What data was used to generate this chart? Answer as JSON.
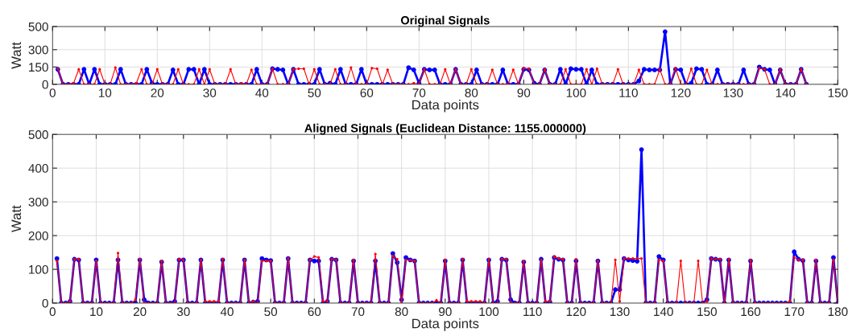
{
  "chart_data": [
    {
      "type": "line",
      "title": "Original Signals",
      "xlabel": "Data points",
      "ylabel": "Watt",
      "xlim": [
        0,
        150
      ],
      "xticks": [
        0,
        10,
        20,
        30,
        40,
        50,
        60,
        70,
        80,
        90,
        100,
        110,
        120,
        130,
        140,
        150
      ],
      "ylim": [
        0,
        500
      ],
      "yticks": [
        0,
        150,
        300,
        500
      ],
      "grid": true,
      "marker": "circle",
      "line_style": "solid",
      "x": [
        1,
        2,
        3,
        4,
        5,
        6,
        7,
        8,
        9,
        10,
        11,
        12,
        13,
        14,
        15,
        16,
        17,
        18,
        19,
        20,
        21,
        22,
        23,
        24,
        25,
        26,
        27,
        28,
        29,
        30,
        31,
        32,
        33,
        34,
        35,
        36,
        37,
        38,
        39,
        40,
        41,
        42,
        43,
        44,
        45,
        46,
        47,
        48,
        49,
        50,
        51,
        52,
        53,
        54,
        55,
        56,
        57,
        58,
        59,
        60,
        61,
        62,
        63,
        64,
        65,
        66,
        67,
        68,
        69,
        70,
        71,
        72,
        73,
        74,
        75,
        76,
        77,
        78,
        79,
        80,
        81,
        82,
        83,
        84,
        85,
        86,
        87,
        88,
        89,
        90,
        91,
        92,
        93,
        94,
        95,
        96,
        97,
        98,
        99,
        100,
        101,
        102,
        103,
        104,
        105,
        106,
        107,
        108,
        109,
        110,
        111,
        112,
        113,
        114,
        115,
        116,
        117,
        118,
        119,
        120,
        121,
        122,
        123,
        124,
        125,
        126,
        127,
        128,
        129,
        130,
        131,
        132,
        133,
        134,
        135,
        136,
        137,
        138,
        139,
        140,
        141,
        142,
        143,
        144
      ],
      "series": [
        {
          "color": "#0000ff",
          "values": [
            130,
            0,
            0,
            0,
            0,
            130,
            0,
            130,
            0,
            0,
            0,
            0,
            130,
            0,
            0,
            0,
            0,
            130,
            10,
            0,
            0,
            0,
            125,
            0,
            0,
            130,
            130,
            0,
            130,
            0,
            0,
            0,
            0,
            0,
            0,
            0,
            0,
            0,
            130,
            0,
            0,
            135,
            130,
            125,
            0,
            130,
            0,
            0,
            0,
            0,
            130,
            0,
            10,
            0,
            130,
            0,
            0,
            0,
            130,
            0,
            0,
            0,
            0,
            0,
            0,
            0,
            0,
            145,
            125,
            10,
            130,
            125,
            125,
            0,
            0,
            0,
            130,
            0,
            0,
            0,
            125,
            0,
            0,
            0,
            0,
            125,
            0,
            0,
            0,
            130,
            125,
            10,
            0,
            125,
            0,
            0,
            130,
            0,
            135,
            130,
            130,
            0,
            125,
            0,
            0,
            0,
            0,
            0,
            0,
            0,
            0,
            30,
            130,
            125,
            125,
            125,
            455,
            0,
            130,
            125,
            0,
            10,
            135,
            130,
            0,
            0,
            125,
            0,
            0,
            0,
            0,
            125,
            0,
            0,
            150,
            130,
            125,
            0,
            125,
            0,
            0,
            0,
            130,
            0
          ]
        },
        {
          "color": "#ff0000",
          "values": [
            135,
            0,
            0,
            8,
            130,
            0,
            0,
            0,
            130,
            0,
            0,
            145,
            0,
            0,
            0,
            10,
            130,
            0,
            0,
            130,
            0,
            0,
            0,
            130,
            0,
            0,
            0,
            130,
            0,
            130,
            0,
            0,
            0,
            130,
            0,
            8,
            0,
            125,
            0,
            0,
            0,
            135,
            0,
            0,
            0,
            130,
            135,
            135,
            0,
            130,
            0,
            0,
            0,
            130,
            0,
            0,
            145,
            0,
            0,
            0,
            140,
            135,
            0,
            125,
            0,
            0,
            0,
            0,
            10,
            0,
            130,
            0,
            0,
            0,
            130,
            0,
            130,
            0,
            0,
            130,
            0,
            0,
            0,
            125,
            0,
            0,
            0,
            125,
            0,
            140,
            135,
            0,
            0,
            130,
            0,
            0,
            0,
            130,
            0,
            0,
            0,
            130,
            0,
            135,
            0,
            0,
            0,
            130,
            0,
            0,
            0,
            125,
            0,
            0,
            0,
            130,
            0,
            0,
            140,
            0,
            0,
            135,
            0,
            0,
            125,
            0,
            0,
            0,
            0,
            0,
            0,
            0,
            0,
            0,
            140,
            130,
            0,
            0,
            130,
            0,
            0,
            0,
            130,
            0
          ]
        }
      ]
    },
    {
      "type": "line",
      "title": "Aligned Signals (Euclidean Distance: 1155.000000)",
      "xlabel": "Data points",
      "ylabel": "Watt",
      "xlim": [
        0,
        180
      ],
      "xticks": [
        0,
        10,
        20,
        30,
        40,
        50,
        60,
        70,
        80,
        90,
        100,
        110,
        120,
        130,
        140,
        150,
        160,
        170,
        180
      ],
      "ylim": [
        0,
        500
      ],
      "yticks": [
        0,
        100,
        200,
        300,
        400,
        500
      ],
      "grid": true,
      "marker": "circle",
      "line_style": "solid",
      "x": [
        1,
        2,
        3,
        4,
        5,
        6,
        7,
        8,
        9,
        10,
        11,
        12,
        13,
        14,
        15,
        16,
        17,
        18,
        19,
        20,
        21,
        22,
        23,
        24,
        25,
        26,
        27,
        28,
        29,
        30,
        31,
        32,
        33,
        34,
        35,
        36,
        37,
        38,
        39,
        40,
        41,
        42,
        43,
        44,
        45,
        46,
        47,
        48,
        49,
        50,
        51,
        52,
        53,
        54,
        55,
        56,
        57,
        58,
        59,
        60,
        61,
        62,
        63,
        64,
        65,
        66,
        67,
        68,
        69,
        70,
        71,
        72,
        73,
        74,
        75,
        76,
        77,
        78,
        79,
        80,
        81,
        82,
        83,
        84,
        85,
        86,
        87,
        88,
        89,
        90,
        91,
        92,
        93,
        94,
        95,
        96,
        97,
        98,
        99,
        100,
        101,
        102,
        103,
        104,
        105,
        106,
        107,
        108,
        109,
        110,
        111,
        112,
        113,
        114,
        115,
        116,
        117,
        118,
        119,
        120,
        121,
        122,
        123,
        124,
        125,
        126,
        127,
        128,
        129,
        130,
        131,
        132,
        133,
        134,
        135,
        136,
        137,
        138,
        139,
        140,
        141,
        142,
        143,
        144,
        145,
        146,
        147,
        148,
        149,
        150,
        151,
        152,
        153,
        154,
        155,
        156,
        157,
        158,
        159,
        160,
        161,
        162,
        163,
        164,
        165,
        166,
        167,
        168,
        169,
        170,
        171,
        172,
        173,
        174,
        175,
        176,
        177,
        178,
        179,
        180
      ],
      "series": [
        {
          "color": "#0000ff",
          "values": [
            132,
            0,
            0,
            5,
            130,
            128,
            0,
            0,
            0,
            128,
            0,
            0,
            0,
            0,
            128,
            0,
            0,
            0,
            0,
            128,
            10,
            0,
            0,
            0,
            122,
            0,
            0,
            5,
            128,
            128,
            0,
            0,
            0,
            128,
            0,
            0,
            0,
            0,
            128,
            0,
            0,
            0,
            0,
            128,
            0,
            3,
            5,
            132,
            128,
            126,
            0,
            0,
            0,
            132,
            0,
            0,
            0,
            0,
            128,
            125,
            125,
            0,
            5,
            130,
            128,
            0,
            0,
            0,
            125,
            0,
            0,
            0,
            0,
            125,
            0,
            0,
            0,
            147,
            120,
            10,
            135,
            128,
            125,
            0,
            0,
            0,
            0,
            0,
            0,
            125,
            0,
            0,
            0,
            128,
            0,
            0,
            0,
            0,
            0,
            128,
            0,
            5,
            130,
            128,
            10,
            0,
            0,
            122,
            0,
            0,
            0,
            130,
            0,
            3,
            135,
            130,
            128,
            0,
            0,
            125,
            0,
            0,
            0,
            0,
            125,
            0,
            0,
            0,
            40,
            40,
            132,
            128,
            126,
            124,
            455,
            0,
            0,
            0,
            138,
            128,
            0,
            0,
            0,
            0,
            0,
            0,
            0,
            0,
            0,
            10,
            132,
            130,
            128,
            0,
            128,
            0,
            0,
            0,
            0,
            125,
            0,
            0,
            0,
            0,
            0,
            0,
            0,
            0,
            0,
            152,
            130,
            126,
            0,
            0,
            125,
            0,
            0,
            0,
            135,
            0
          ]
        },
        {
          "color": "#ff0000",
          "values": [
            125,
            0,
            0,
            5,
            130,
            130,
            0,
            0,
            0,
            125,
            0,
            0,
            0,
            0,
            148,
            0,
            0,
            0,
            10,
            130,
            0,
            0,
            0,
            0,
            125,
            0,
            0,
            0,
            130,
            128,
            0,
            0,
            0,
            128,
            5,
            5,
            5,
            5,
            130,
            0,
            0,
            0,
            0,
            128,
            0,
            5,
            0,
            125,
            125,
            125,
            0,
            0,
            0,
            132,
            0,
            0,
            0,
            0,
            128,
            138,
            135,
            5,
            5,
            130,
            128,
            0,
            0,
            0,
            128,
            0,
            0,
            0,
            0,
            145,
            0,
            0,
            0,
            140,
            130,
            0,
            128,
            127,
            125,
            0,
            0,
            0,
            0,
            8,
            0,
            128,
            0,
            0,
            0,
            130,
            5,
            5,
            5,
            5,
            0,
            130,
            0,
            0,
            130,
            130,
            0,
            0,
            0,
            125,
            0,
            0,
            0,
            128,
            5,
            5,
            138,
            132,
            130,
            0,
            0,
            130,
            0,
            0,
            0,
            0,
            125,
            0,
            0,
            0,
            128,
            5,
            132,
            132,
            132,
            132,
            132,
            0,
            0,
            0,
            128,
            125,
            0,
            0,
            0,
            125,
            0,
            0,
            0,
            125,
            0,
            5,
            132,
            130,
            130,
            0,
            130,
            0,
            0,
            0,
            0,
            128,
            0,
            0,
            0,
            0,
            0,
            0,
            0,
            0,
            5,
            135,
            128,
            128,
            0,
            0,
            128,
            0,
            0,
            0,
            128,
            0
          ]
        }
      ]
    }
  ]
}
